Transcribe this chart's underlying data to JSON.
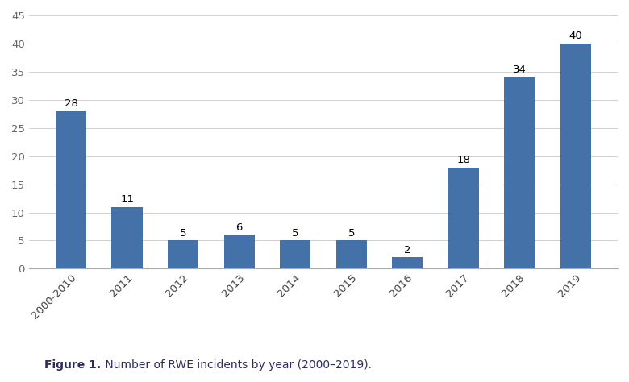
{
  "categories": [
    "2000-2010",
    "2011",
    "2012",
    "2013",
    "2014",
    "2015",
    "2016",
    "2017",
    "2018",
    "2019"
  ],
  "values": [
    28,
    11,
    5,
    6,
    5,
    5,
    2,
    18,
    34,
    40
  ],
  "bar_color": "#4472a8",
  "ylim": [
    0,
    45
  ],
  "yticks": [
    0,
    5,
    10,
    15,
    20,
    25,
    30,
    35,
    40,
    45
  ],
  "background_color": "#ffffff",
  "tick_fontsize": 9.5,
  "bar_label_fontsize": 9.5,
  "caption_fontsize": 10,
  "caption_bold": "Figure 1.",
  "caption_normal": " Number of RWE incidents by year (2000–2019)."
}
